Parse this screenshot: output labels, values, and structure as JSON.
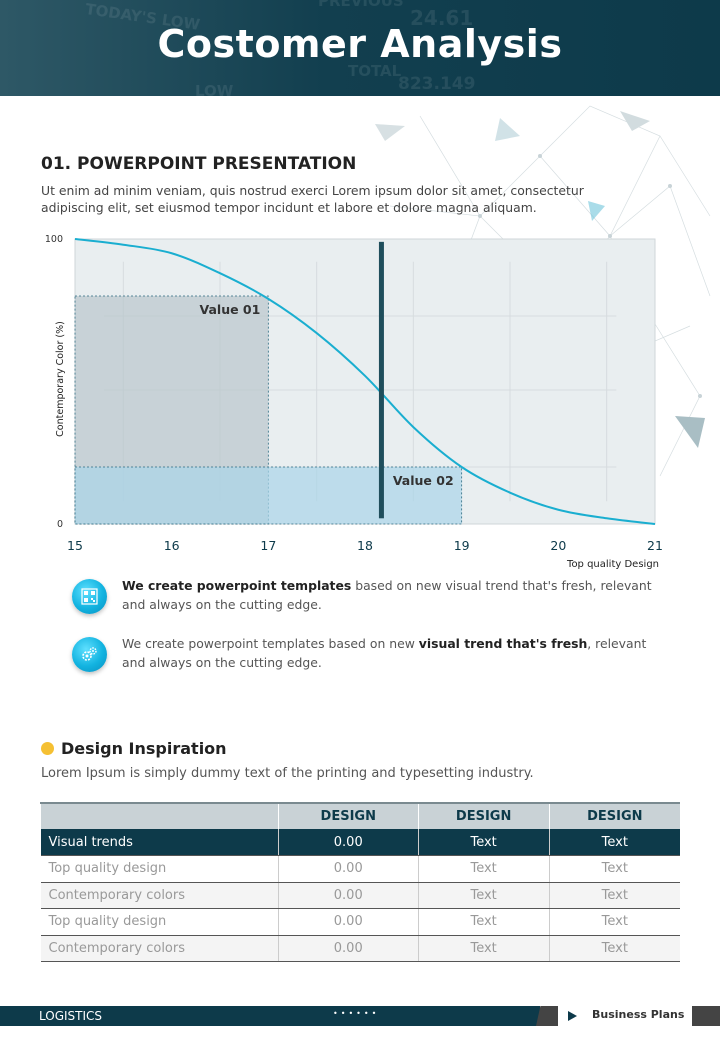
{
  "header": {
    "title": "Costomer Analysis",
    "bg_words": [
      "TODAY'S LOW",
      "PREVIOUS",
      "24.61",
      "TOTAL",
      "823.149",
      "LOW"
    ]
  },
  "section1": {
    "title": "01.  POWERPOINT PRESENTATION",
    "intro": "Ut enim ad minim veniam, quis nostrud exerci  Lorem ipsum dolor sit amet, consectetur adipiscing elit, set eiusmod tempor incidunt  et labore et dolore magna aliquam."
  },
  "chart_data": {
    "type": "line",
    "title": "",
    "xlabel": "Top quality Design",
    "ylabel": "Contemporary Color (%)",
    "xlim": [
      15,
      21
    ],
    "ylim": [
      0,
      100
    ],
    "x_ticks": [
      "15",
      "16",
      "17",
      "18",
      "19",
      "20",
      "21"
    ],
    "y_ticks": [
      "0",
      "100"
    ],
    "series": [
      {
        "x": [
          15,
          15.5,
          16,
          16.5,
          17,
          17.5,
          18,
          18.5,
          19,
          19.5,
          20,
          20.5,
          21
        ],
        "y": [
          100,
          98,
          95,
          88,
          79,
          67,
          52,
          34,
          20,
          11,
          5,
          2,
          0
        ],
        "color": "#1aaed0"
      }
    ],
    "vertical_marker_x": 18.17,
    "regions": [
      {
        "label": "Value 01",
        "x0": 15,
        "x1": 17,
        "y0": 0,
        "y1": 80,
        "color": "#b9c6cc"
      },
      {
        "label": "Value 02",
        "x0": 15,
        "x1": 19,
        "y0": 0,
        "y1": 20,
        "color": "#a9d4e8"
      }
    ],
    "grid": true
  },
  "bullets": [
    {
      "icon": "qr-code-icon",
      "bold": "We create powerpoint templates",
      "text": " based on new visual trend that's fresh, relevant and always on the cutting edge."
    },
    {
      "icon": "gears-icon",
      "pre": "We create powerpoint templates based on new ",
      "bold": "visual trend that's fresh",
      "text": ", relevant and always on the cutting edge."
    }
  ],
  "inspiration": {
    "title": "Design Inspiration",
    "subtitle": "Lorem Ipsum is simply dummy text of the printing and typesetting industry.",
    "columns": [
      "",
      "DESIGN",
      "DESIGN",
      "DESIGN"
    ],
    "rows": [
      [
        "Visual trends",
        "0.00",
        "Text",
        "Text"
      ],
      [
        "Top quality design",
        "0.00",
        "Text",
        "Text"
      ],
      [
        "Contemporary colors",
        "0.00",
        "Text",
        "Text"
      ],
      [
        "Top quality design",
        "0.00",
        "Text",
        "Text"
      ],
      [
        "Contemporary colors",
        "0.00",
        "Text",
        "Text"
      ]
    ],
    "highlight_row": 0
  },
  "footer": {
    "left": "LOGISTICS",
    "dots": "••••••",
    "right": "Business Plans"
  },
  "colors": {
    "accent": "#0d3a4a",
    "line": "#1aaed0",
    "yellow": "#f5c033"
  }
}
